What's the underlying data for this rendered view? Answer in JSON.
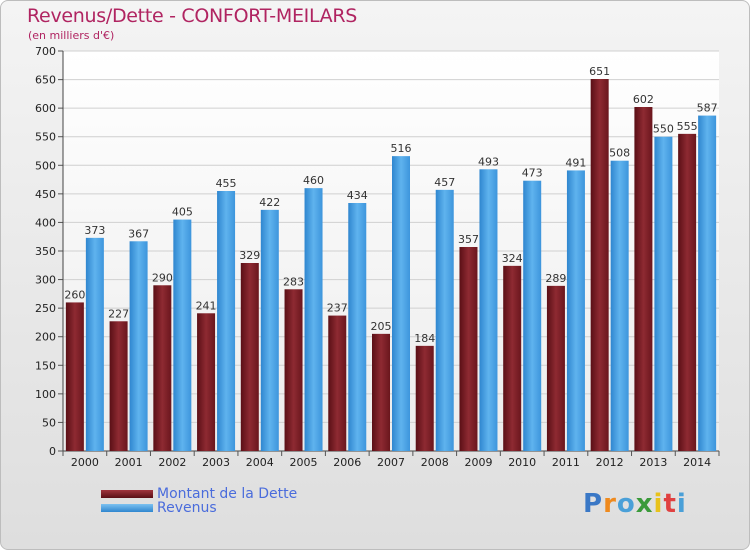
{
  "title": "Revenus/Dette - CONFORT-MEILARS",
  "subtitle": "(en milliers d'€)",
  "brand": {
    "text": "Proxiti",
    "letter_colors": [
      "#3a78c6",
      "#ef8a1e",
      "#4aa0d8",
      "#3a9a3a",
      "#e8c21c",
      "#e04040",
      "#4aa0d8"
    ]
  },
  "chart_data": {
    "type": "bar",
    "categories": [
      "2000",
      "2001",
      "2002",
      "2003",
      "2004",
      "2005",
      "2006",
      "2007",
      "2008",
      "2009",
      "2010",
      "2011",
      "2012",
      "2013",
      "2014"
    ],
    "series": [
      {
        "name": "Montant de la Dette",
        "color": "#7a1c24",
        "values": [
          260,
          227,
          290,
          241,
          329,
          283,
          237,
          205,
          184,
          357,
          324,
          289,
          651,
          602,
          555
        ]
      },
      {
        "name": "Revenus",
        "color": "#4da3e3",
        "values": [
          373,
          367,
          405,
          455,
          422,
          460,
          434,
          516,
          457,
          493,
          473,
          491,
          508,
          550,
          587
        ]
      }
    ],
    "ylim": [
      0,
      700
    ],
    "yticks": [
      0,
      50,
      100,
      150,
      200,
      250,
      300,
      350,
      400,
      450,
      500,
      550,
      600,
      650,
      700
    ],
    "grid": true,
    "legend_position": "bottom-left",
    "title": "Revenus/Dette - CONFORT-MEILARS",
    "ylabel": "(en milliers d'€)"
  }
}
